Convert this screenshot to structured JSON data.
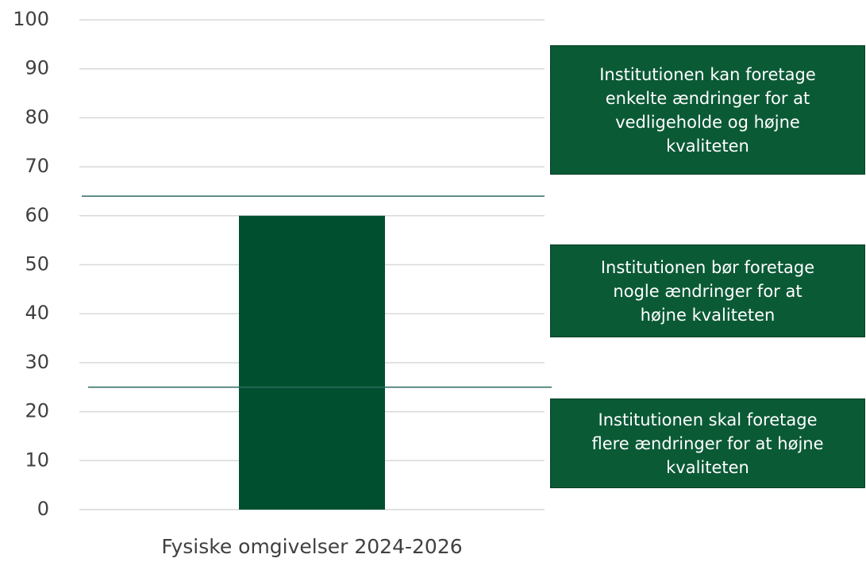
{
  "chart_data": {
    "type": "bar",
    "categories": [
      "Fysiske omgivelser 2024-2026"
    ],
    "values": [
      60
    ],
    "color": "#00502f",
    "ylim": [
      0,
      100
    ],
    "yticks": [
      0,
      10,
      20,
      30,
      40,
      50,
      60,
      70,
      80,
      90,
      100
    ],
    "grid": true,
    "thresholds": [
      64,
      25
    ],
    "annotations": [
      {
        "lines": [
          "Institutionen kan foretage",
          "enkelte ændringer for at",
          "vedligeholde og højne",
          "kvaliteten"
        ]
      },
      {
        "lines": [
          "Institutionen bør foretage",
          "nogle ændringer for at",
          "højne kvaliteten"
        ]
      },
      {
        "lines": [
          "Institutionen skal foretage",
          "flere ændringer for at højne",
          "kvaliteten"
        ]
      }
    ]
  }
}
